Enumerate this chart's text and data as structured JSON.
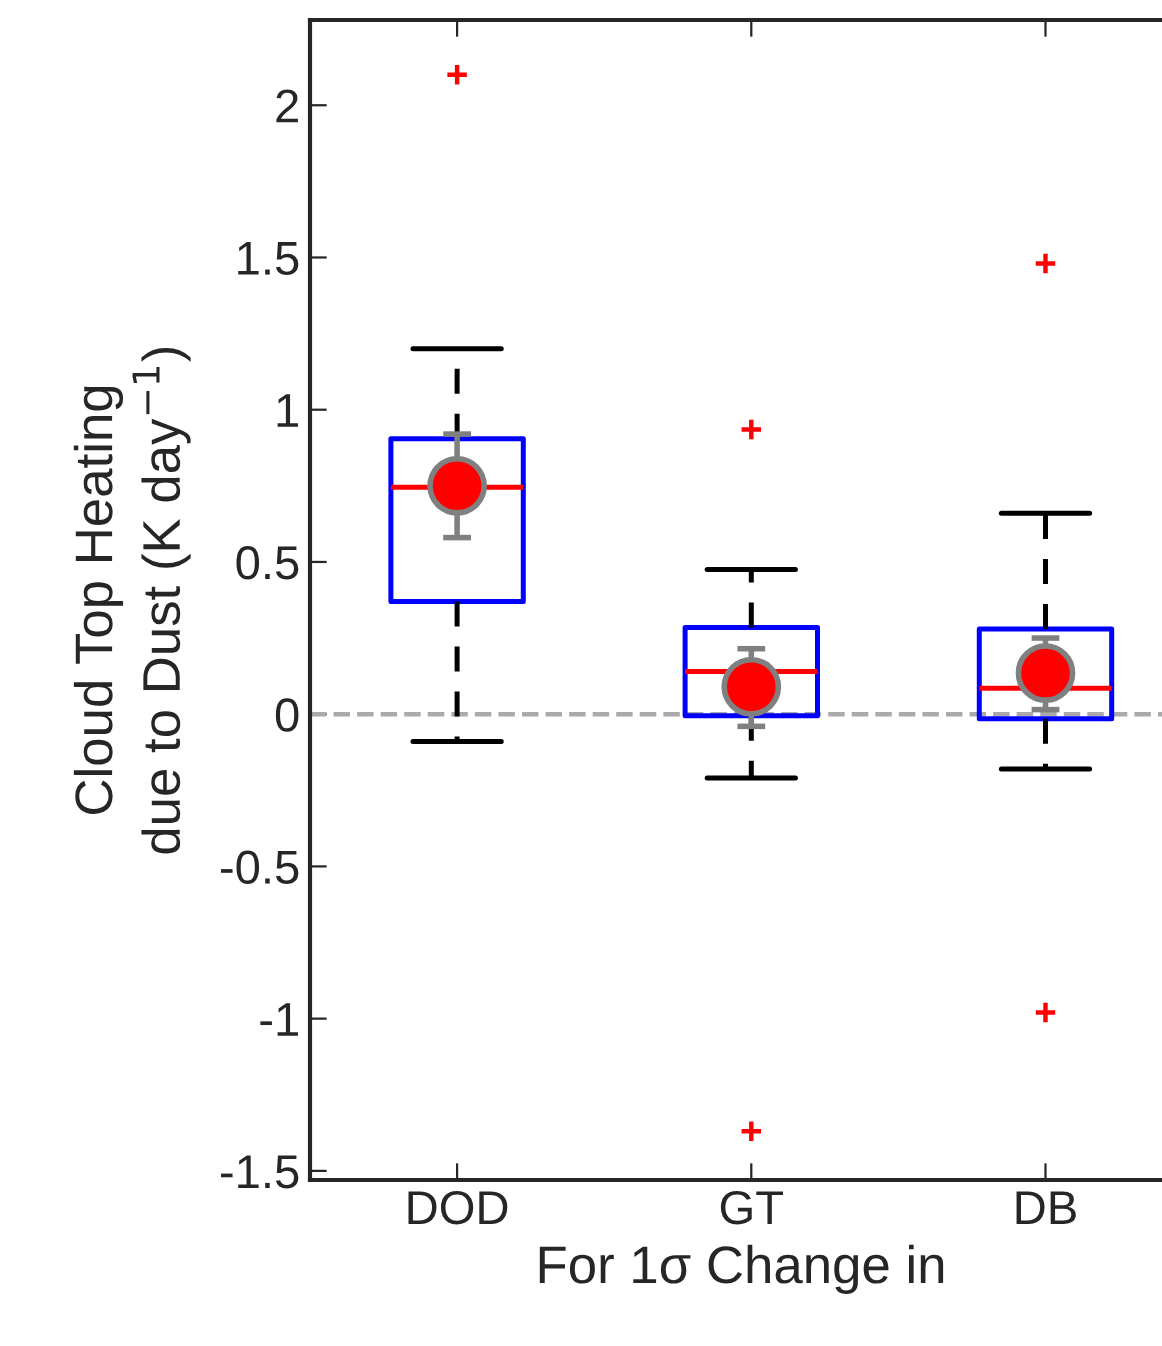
{
  "chart_data": {
    "type": "box",
    "xlabel": "For 1σ Change in",
    "ylabel": "Cloud Top Heating\ndue to Dust (K day$^{−1}$)",
    "categories": [
      "DOD",
      "GT",
      "DB"
    ],
    "boxes": [
      {
        "low": -0.09,
        "q1": 0.37,
        "median": 0.745,
        "q3": 0.905,
        "high": 1.2,
        "outliers": [
          2.1
        ]
      },
      {
        "low": -0.21,
        "q1": -0.005,
        "median": 0.14,
        "q3": 0.285,
        "high": 0.475,
        "outliers": [
          0.935,
          -1.37
        ]
      },
      {
        "low": -0.18,
        "q1": -0.015,
        "median": 0.085,
        "q3": 0.28,
        "high": 0.66,
        "outliers": [
          1.48,
          -0.98
        ]
      }
    ],
    "series": [
      {
        "type": "scatter",
        "color": "#ff0000",
        "x": [
          "DOD",
          "GT",
          "DB"
        ],
        "values": [
          0.75,
          0.09,
          0.135
        ],
        "errors": [
          [
            0.58,
            0.92
          ],
          [
            -0.04,
            0.215
          ],
          [
            0.015,
            0.25
          ]
        ],
        "marker": "circle"
      }
    ],
    "ylim": [
      -1.53,
      2.28
    ],
    "yticks": [
      -1.5,
      -1,
      -0.5,
      0,
      0.5,
      1,
      1.5,
      2
    ],
    "ref_lines": [
      {
        "axis": "y",
        "value": 0,
        "color": "#aaaaaa",
        "line_style": "dashed"
      }
    ],
    "grid": false
  }
}
